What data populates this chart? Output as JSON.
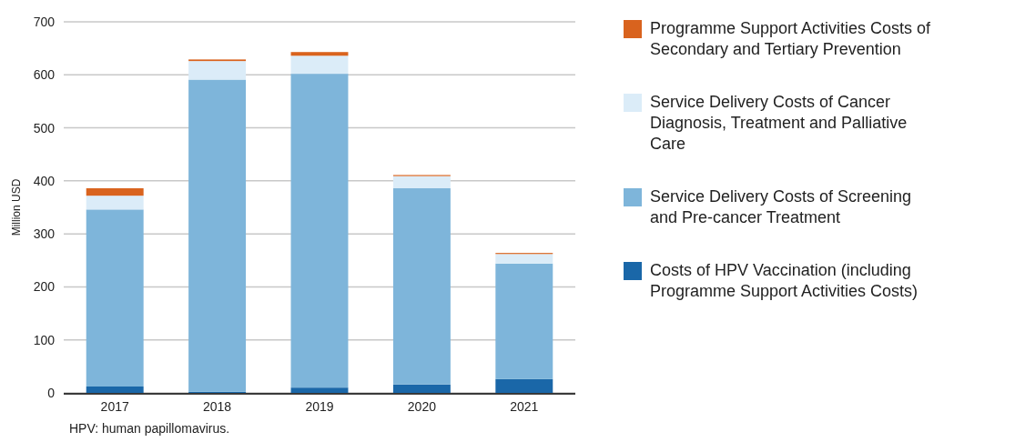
{
  "chart_data": {
    "type": "bar",
    "stacked": true,
    "ylabel": "Million USD",
    "categories": [
      "2017",
      "2018",
      "2019",
      "2020",
      "2021"
    ],
    "series": [
      {
        "name": "Costs of HPV Vaccination (including Programme Support Activities Costs)",
        "color": "#1a67a8",
        "values": [
          12,
          2,
          10,
          16,
          26
        ]
      },
      {
        "name": "Service Delivery Costs of Screening and Pre-cancer Treatment",
        "color": "#7eb5da",
        "values": [
          334,
          589,
          592,
          370,
          218
        ]
      },
      {
        "name": "Service Delivery Costs of Cancer Diagnosis, Treatment and Palliative Care",
        "color": "#dbecf8",
        "values": [
          26,
          35,
          34,
          23,
          18
        ]
      },
      {
        "name": "Programme Support Activities Costs of Secondary and Tertiary Prevention",
        "color": "#d9631e",
        "values": [
          14,
          3,
          7,
          2,
          2
        ]
      }
    ],
    "ylim": [
      0,
      700
    ],
    "yticks": [
      0,
      100,
      200,
      300,
      400,
      500,
      600,
      700
    ],
    "grid": "y",
    "legend": "right",
    "annotations": [
      "HPV: human papillomavirus."
    ]
  }
}
